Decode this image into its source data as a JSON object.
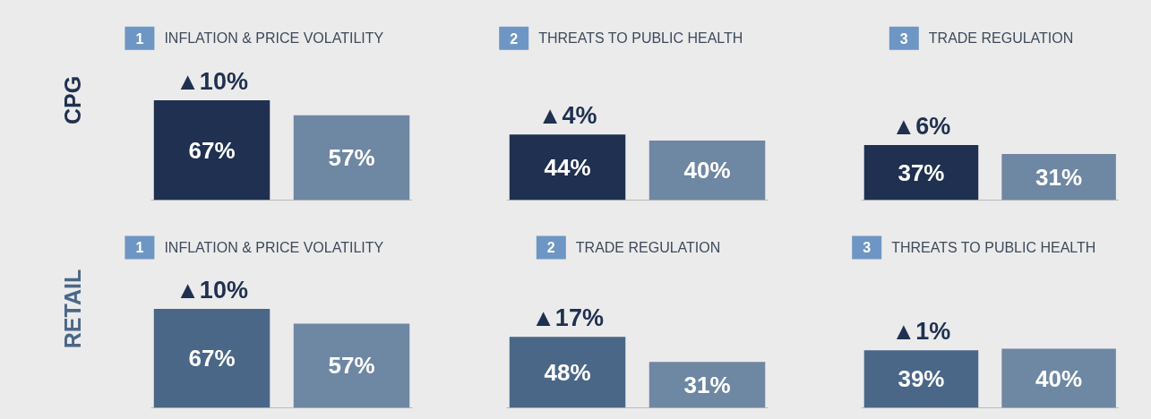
{
  "chart_data": [
    {
      "type": "bar",
      "title": "INFLATION & PRICE VOLATILITY",
      "ylabel": "CPG",
      "categories": [
        null,
        null
      ],
      "values": [
        67,
        57
      ],
      "colors": [
        "#1f3050",
        "#6e87a3"
      ],
      "value_labels": [
        "67%",
        "57%"
      ],
      "tick_labels": false,
      "annotations": [
        "1",
        "▲10%"
      ]
    },
    {
      "type": "bar",
      "title": "THREATS TO PUBLIC HEALTH",
      "categories": [
        null,
        null
      ],
      "values": [
        44,
        40
      ],
      "colors": [
        "#1f3050",
        "#6e87a3"
      ],
      "value_labels": [
        "44%",
        "40%"
      ],
      "tick_labels": false,
      "annotations": [
        "2",
        "▲4%"
      ]
    },
    {
      "type": "bar",
      "title": "TRADE REGULATION",
      "categories": [
        null,
        null
      ],
      "values": [
        37,
        31
      ],
      "colors": [
        "#1f3050",
        "#6e87a3"
      ],
      "value_labels": [
        "37%",
        "31%"
      ],
      "tick_labels": false,
      "annotations": [
        "3",
        "▲6%"
      ]
    },
    {
      "type": "bar",
      "title": "INFLATION & PRICE VOLATILITY",
      "ylabel": "RETAIL",
      "categories": [
        null,
        null
      ],
      "values": [
        67,
        57
      ],
      "colors": [
        "#4a6787",
        "#6e87a3"
      ],
      "value_labels": [
        "67%",
        "57%"
      ],
      "tick_labels": false,
      "annotations": [
        "1",
        "▲10%"
      ]
    },
    {
      "type": "bar",
      "title": "TRADE REGULATION",
      "categories": [
        null,
        null
      ],
      "values": [
        48,
        31
      ],
      "colors": [
        "#4a6787",
        "#6e87a3"
      ],
      "value_labels": [
        "48%",
        "31%"
      ],
      "tick_labels": false,
      "annotations": [
        "2",
        "▲17%"
      ]
    },
    {
      "type": "bar",
      "title": "THREATS TO PUBLIC HEALTH",
      "categories": [
        null,
        null
      ],
      "values": [
        39,
        40
      ],
      "colors": [
        "#4a6787",
        "#6e87a3"
      ],
      "value_labels": [
        "39%",
        "40%"
      ],
      "tick_labels": false,
      "annotations": [
        "3",
        "▲1%"
      ]
    }
  ]
}
